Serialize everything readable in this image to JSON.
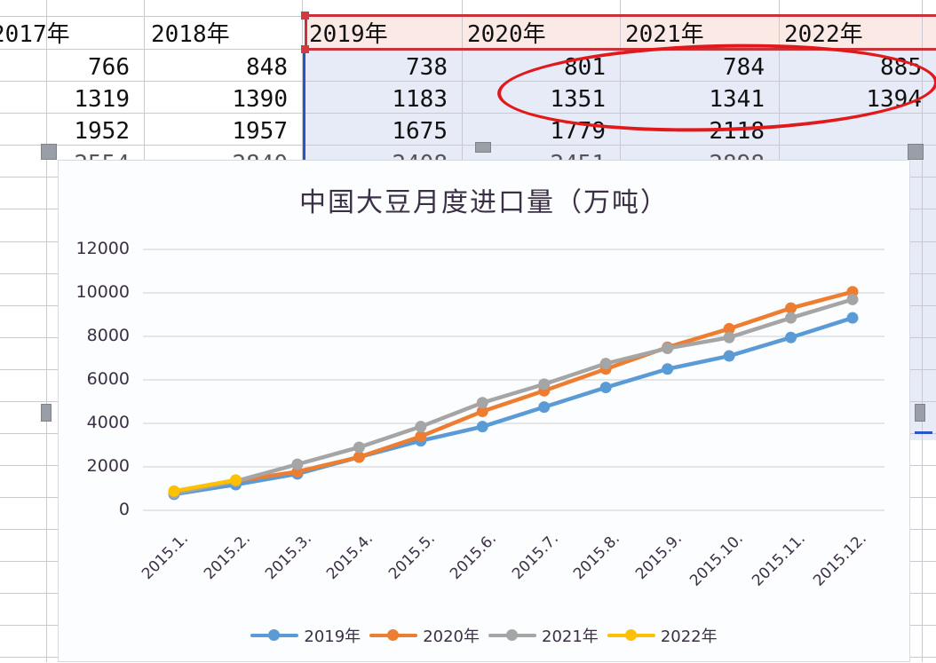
{
  "spreadsheet": {
    "columns": [
      {
        "header": "2017年",
        "values": [
          "766",
          "1319",
          "1952"
        ]
      },
      {
        "header": "2018年",
        "values": [
          "848",
          "1390",
          "1957"
        ]
      },
      {
        "header": "2019年",
        "values": [
          "738",
          "1183",
          "1675"
        ]
      },
      {
        "header": "2020年",
        "values": [
          "801",
          "1351",
          "1779"
        ]
      },
      {
        "header": "2021年",
        "values": [
          "784",
          "1341",
          "2118"
        ]
      },
      {
        "header": "2022年",
        "values": [
          "885",
          "1394",
          ""
        ]
      }
    ],
    "selection_color": "#e6ebf7",
    "header_selection_color": "#fbe9e6",
    "annotation_color": "#e2191b"
  },
  "chart_data": {
    "type": "line",
    "title": "中国大豆月度进口量（万吨）",
    "xlabel": "",
    "ylabel": "",
    "categories": [
      "2015.1.",
      "2015.2.",
      "2015.3.",
      "2015.4.",
      "2015.5.",
      "2015.6.",
      "2015.7.",
      "2015.8.",
      "2015.9.",
      "2015.10.",
      "2015.11.",
      "2015.12."
    ],
    "yticks": [
      "0",
      "2000",
      "4000",
      "6000",
      "8000",
      "10000",
      "12000"
    ],
    "ylim": [
      0,
      12000
    ],
    "grid": true,
    "legend_position": "bottom",
    "series": [
      {
        "name": "2019年",
        "color": "#5b9bd5",
        "values": [
          738,
          1183,
          1675,
          2450,
          3200,
          3850,
          4750,
          5650,
          6500,
          7100,
          7950,
          8850
        ]
      },
      {
        "name": "2020年",
        "color": "#ed7d31",
        "values": [
          801,
          1351,
          1779,
          2450,
          3400,
          4550,
          5500,
          6500,
          7500,
          8350,
          9300,
          10050
        ]
      },
      {
        "name": "2021年",
        "color": "#a5a5a5",
        "values": [
          784,
          1341,
          2118,
          2900,
          3850,
          4950,
          5800,
          6750,
          7450,
          7950,
          8850,
          9700
        ]
      },
      {
        "name": "2022年",
        "color": "#ffc000",
        "values": [
          885,
          1394
        ]
      }
    ]
  }
}
